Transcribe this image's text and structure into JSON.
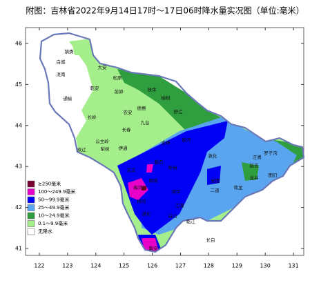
{
  "title": "附图：吉林省2022年9月14日17时～17日06时降水量实况图（单位:毫米）",
  "x_ticks": [
    122,
    123,
    124,
    125,
    126,
    127,
    128,
    129,
    130,
    131
  ],
  "y_ticks": [
    46,
    45,
    44,
    43,
    42,
    41
  ],
  "legend": [
    {
      "label": "≥250毫米",
      "color": "#7b0032"
    },
    {
      "label": "100～249.9毫米",
      "color": "#e600c8"
    },
    {
      "label": "50～99.9毫米",
      "color": "#0000f5"
    },
    {
      "label": "25～49.9毫米",
      "color": "#5aa5f0"
    },
    {
      "label": "10～24.9毫米",
      "color": "#2f9e3e"
    },
    {
      "label": "0.1～9.9毫米",
      "color": "#a5ee8c"
    },
    {
      "label": "无降水",
      "color": "#ffffff"
    }
  ],
  "places": [
    "镇赉",
    "白城",
    "洮南",
    "大安",
    "松原",
    "乾安",
    "前郭",
    "扶余",
    "通榆",
    "长岭",
    "榆树",
    "农安",
    "德惠",
    "舒兰",
    "九台",
    "长春",
    "双辽",
    "公主岭",
    "梨树",
    "伊通",
    "吉林",
    "蛟河",
    "敦化",
    "汪清",
    "罗子沟",
    "图们",
    "延吉",
    "龙井",
    "和龙",
    "安图",
    "二道",
    "磐石",
    "辉南",
    "东丰",
    "梅河口",
    "柳河",
    "靖宇",
    "江源",
    "白山",
    "临江",
    "长白",
    "通化",
    "集安",
    "桦甸"
  ]
}
